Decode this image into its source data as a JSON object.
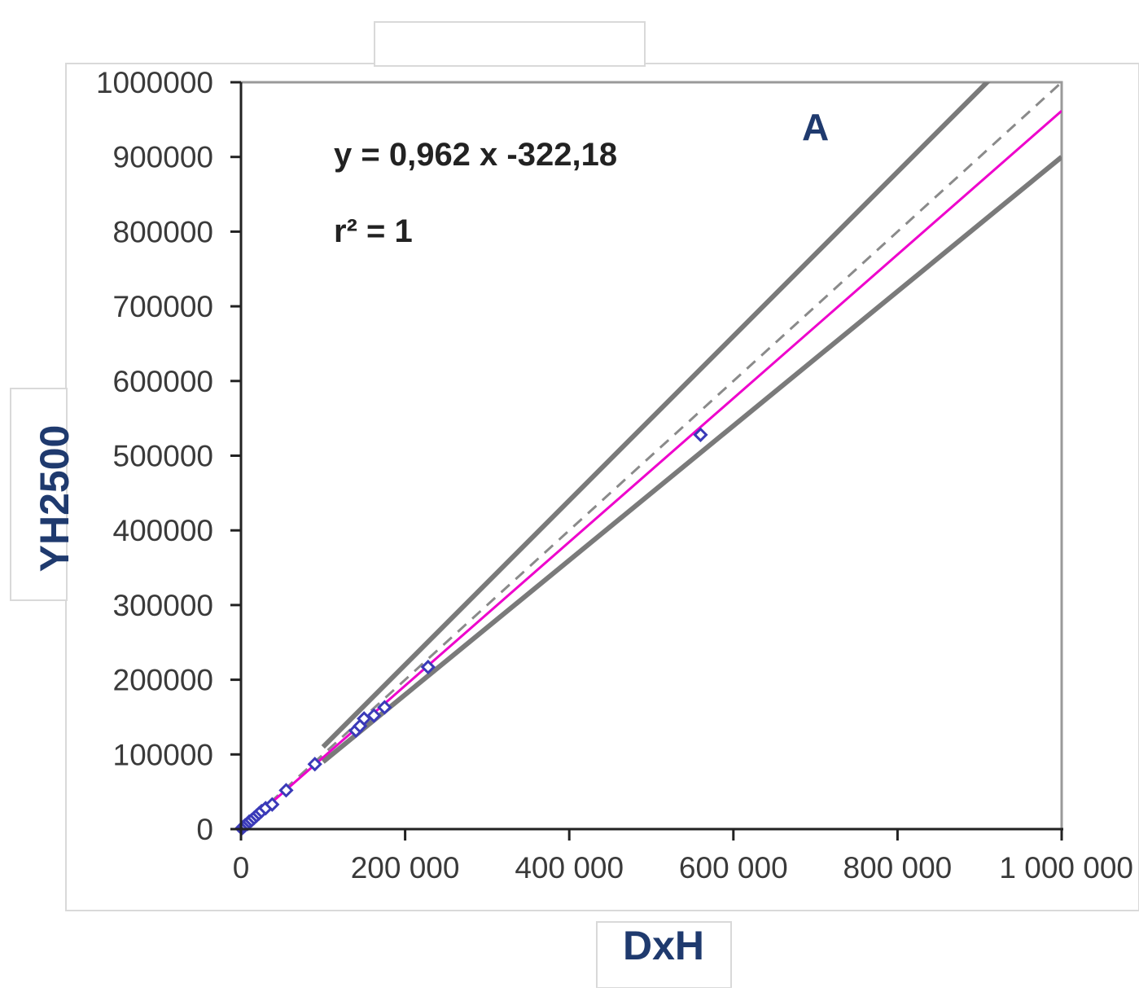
{
  "chart_data": {
    "type": "scatter",
    "title": "",
    "panel_label": "A",
    "xlabel": "DxH",
    "ylabel": "YH2500",
    "xlim": [
      0,
      1000000
    ],
    "ylim": [
      0,
      1000000
    ],
    "x_ticks": [
      0,
      200000,
      400000,
      600000,
      800000,
      1000000
    ],
    "x_tick_labels": [
      "0",
      "200 000",
      "400 000",
      "600 000",
      "800 000",
      "1 000 000"
    ],
    "y_ticks": [
      0,
      100000,
      200000,
      300000,
      400000,
      500000,
      600000,
      700000,
      800000,
      900000,
      1000000
    ],
    "y_tick_labels": [
      "0",
      "100000",
      "200000",
      "300000",
      "400000",
      "500000",
      "600000",
      "700000",
      "800000",
      "900000",
      "1000000"
    ],
    "grid": false,
    "annotations": {
      "equation": "y = 0,962 x  -322,18",
      "r_squared": "r² = 1"
    },
    "regression": {
      "slope": 0.962,
      "intercept": -322.18,
      "color": "#ee00cc"
    },
    "identity_line": {
      "slope": 1,
      "intercept": 0,
      "style": "dashed",
      "color": "#8a8a8a"
    },
    "limit_lines": [
      {
        "slope": 1.1,
        "intercept": 0,
        "color": "#7a7a7a"
      },
      {
        "slope": 0.9,
        "intercept": 0,
        "color": "#7a7a7a"
      }
    ],
    "series": [
      {
        "marker_color": "#3a3ab8",
        "points": [
          [
            1000,
            1000
          ],
          [
            3000,
            3000
          ],
          [
            5000,
            5000
          ],
          [
            8000,
            7000
          ],
          [
            10000,
            10000
          ],
          [
            13000,
            12000
          ],
          [
            16000,
            15000
          ],
          [
            19000,
            18000
          ],
          [
            22000,
            21000
          ],
          [
            25000,
            24000
          ],
          [
            30000,
            28000
          ],
          [
            38000,
            33000
          ],
          [
            55000,
            52000
          ],
          [
            90000,
            87000
          ],
          [
            140000,
            132000
          ],
          [
            145000,
            138000
          ],
          [
            150000,
            148000
          ],
          [
            162000,
            152000
          ],
          [
            175000,
            163000
          ],
          [
            228000,
            217000
          ],
          [
            560000,
            528000
          ]
        ]
      }
    ]
  }
}
